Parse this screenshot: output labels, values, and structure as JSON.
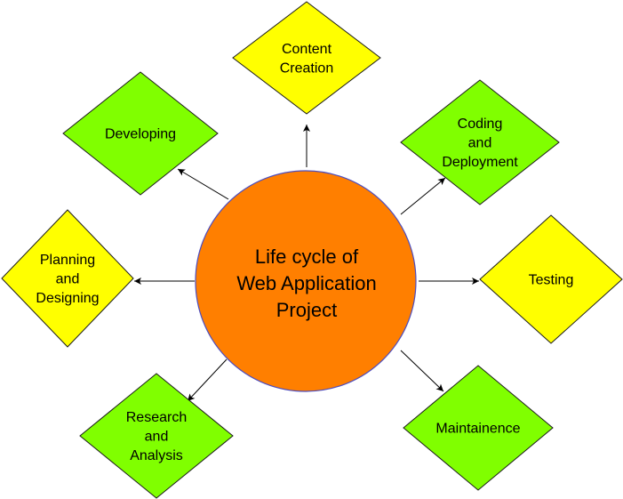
{
  "center": {
    "lines": [
      "Life cycle of",
      "Web Application",
      "Project"
    ],
    "fill": "#FF7F00",
    "stroke": "#4D4DBF"
  },
  "colors": {
    "yellow": "#FFFF00",
    "green": "#80FF00"
  },
  "stages": [
    {
      "id": "content-creation",
      "lines": [
        "Content",
        "Creation"
      ],
      "color": "yellow"
    },
    {
      "id": "coding-and-deployment",
      "lines": [
        "Coding",
        "and",
        "Deployment"
      ],
      "color": "green"
    },
    {
      "id": "testing",
      "lines": [
        "Testing"
      ],
      "color": "yellow"
    },
    {
      "id": "maintainence",
      "lines": [
        "Maintainence"
      ],
      "color": "green"
    },
    {
      "id": "research-and-analysis",
      "lines": [
        "Research",
        "and",
        "Analysis"
      ],
      "color": "green"
    },
    {
      "id": "planning-and-designing",
      "lines": [
        "Planning",
        "and",
        "Designing"
      ],
      "color": "yellow"
    },
    {
      "id": "developing",
      "lines": [
        "Developing"
      ],
      "color": "green"
    }
  ]
}
